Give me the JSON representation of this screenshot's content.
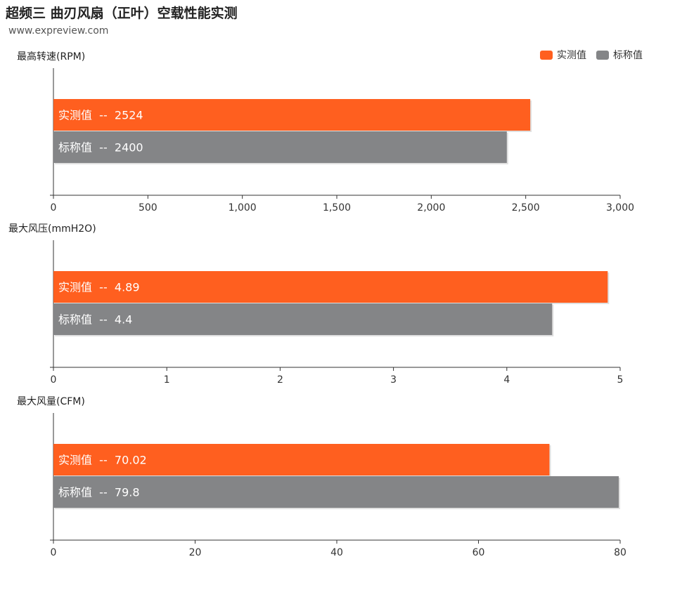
{
  "header": {
    "title": "超频三 曲刃风扇（正叶）空载性能实测",
    "source": "www.expreview.com"
  },
  "legend": [
    {
      "label": "实测值",
      "color": "#FF5F1F"
    },
    {
      "label": "标称值",
      "color": "#848587"
    }
  ],
  "chart_data": [
    {
      "type": "bar",
      "title": "最高转速(RPM)",
      "categories": [
        "实测值",
        "标称值"
      ],
      "values": [
        2524,
        2400
      ],
      "xlim": [
        0,
        3000
      ],
      "ticks": [
        0,
        500,
        1000,
        1500,
        2000,
        2500,
        3000
      ],
      "tick_labels": [
        "0",
        "500",
        "1,000",
        "1,500",
        "2,000",
        "2,500",
        "3,000"
      ],
      "bar_labels": [
        "实测值  --  2524",
        "标称值  --  2400"
      ],
      "colors": [
        "#FF5F1F",
        "#848587"
      ]
    },
    {
      "type": "bar",
      "title": "最大风压(mmH2O)",
      "categories": [
        "实测值",
        "标称值"
      ],
      "values": [
        4.89,
        4.4
      ],
      "xlim": [
        0,
        5
      ],
      "ticks": [
        0,
        1,
        2,
        3,
        4,
        5
      ],
      "tick_labels": [
        "0",
        "1",
        "2",
        "3",
        "4",
        "5"
      ],
      "bar_labels": [
        "实测值  --  4.89",
        "标称值  --  4.4"
      ],
      "colors": [
        "#FF5F1F",
        "#848587"
      ]
    },
    {
      "type": "bar",
      "title": "最大风量(CFM)",
      "categories": [
        "实测值",
        "标称值"
      ],
      "values": [
        70.02,
        79.8
      ],
      "xlim": [
        0,
        80
      ],
      "ticks": [
        0,
        20,
        40,
        60,
        80
      ],
      "tick_labels": [
        "0",
        "20",
        "40",
        "60",
        "80"
      ],
      "bar_labels": [
        "实测值  --  70.02",
        "标称值  --  79.8"
      ],
      "colors": [
        "#FF5F1F",
        "#848587"
      ]
    }
  ]
}
